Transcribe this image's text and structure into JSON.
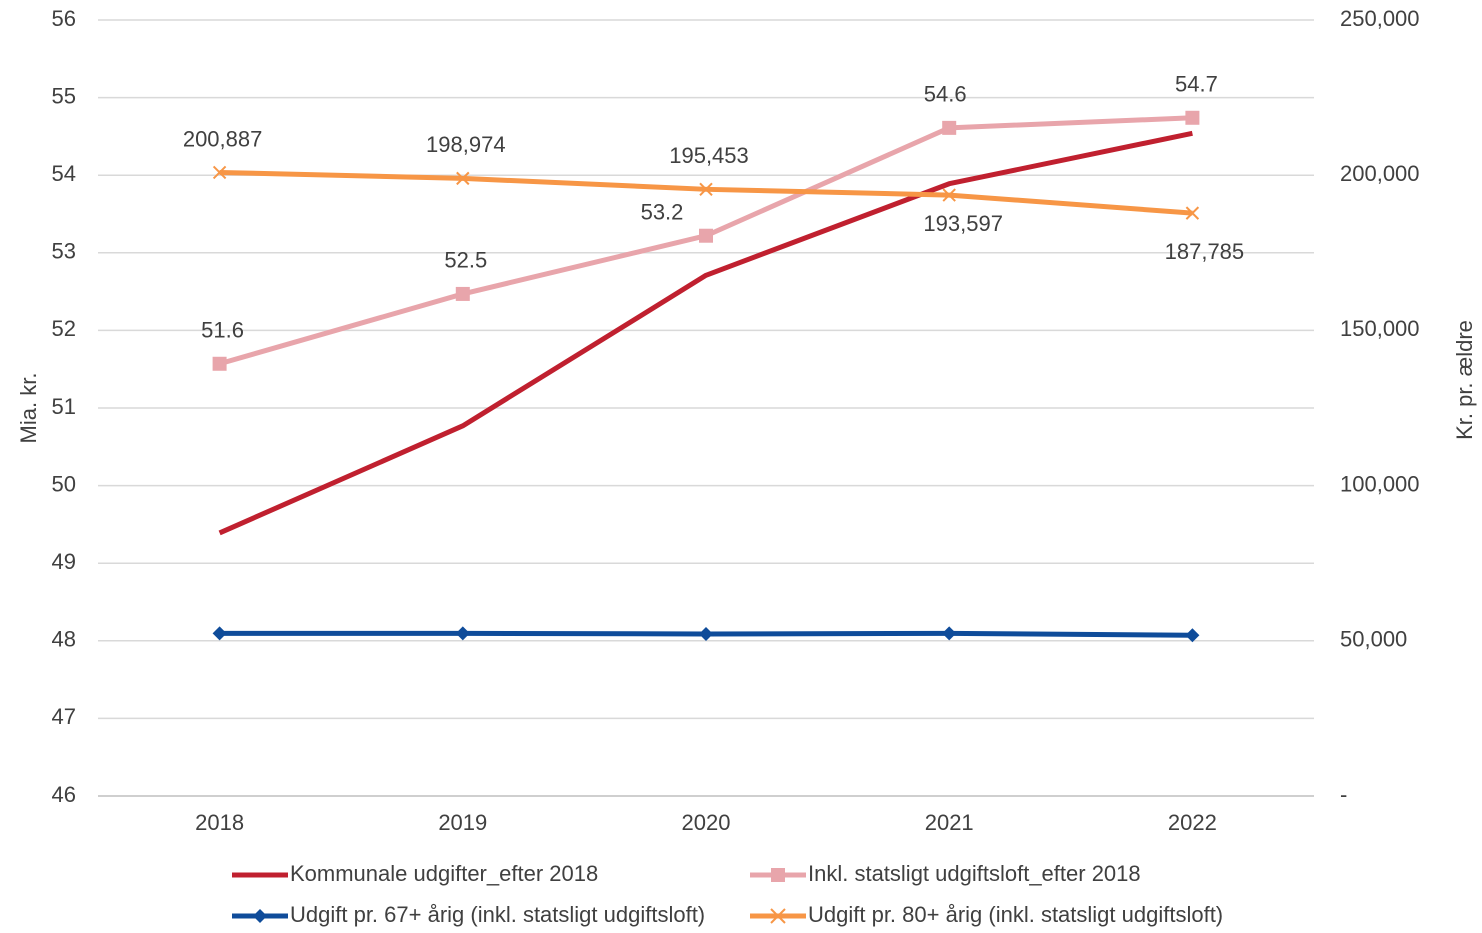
{
  "chart_data": {
    "type": "line",
    "categories": [
      "2018",
      "2019",
      "2020",
      "2021",
      "2022"
    ],
    "ylabel": "Mia. kr.",
    "y2label": "Kr. pr. ældre",
    "ylim": [
      46,
      56
    ],
    "yticks": [
      46,
      47,
      48,
      49,
      50,
      51,
      52,
      53,
      54,
      55,
      56
    ],
    "y2lim": [
      0,
      250000
    ],
    "y2ticks": [
      {
        "value": 0,
        "label": "-"
      },
      {
        "value": 50000,
        "label": "50,000"
      },
      {
        "value": 100000,
        "label": "100,000"
      },
      {
        "value": 150000,
        "label": "150,000"
      },
      {
        "value": 200000,
        "label": "200,000"
      },
      {
        "value": 250000,
        "label": "250,000"
      }
    ],
    "grid": true,
    "legend": "bottom",
    "series": [
      {
        "name": "Kommunale udgifter_efter 2018",
        "color": "#c0202f",
        "marker": "none",
        "values": [
          49.39,
          50.77,
          52.71,
          53.89,
          54.54
        ]
      },
      {
        "name": "Inkl. statsligt udgiftsloft_efter 2018",
        "color": "#e8a5ab",
        "marker": "square",
        "values": [
          51.57,
          52.47,
          53.22,
          54.61,
          54.74
        ],
        "value_labels": [
          "51.6",
          "52.5",
          "53.2",
          "54.6",
          "54.7"
        ]
      },
      {
        "name": "Udgift pr. 67+ årig (inkl. statsligt udgiftsloft)",
        "color": "#0f4c9a",
        "marker": "diamond",
        "axis": "y2",
        "values": [
          52400,
          52400,
          52200,
          52400,
          51800
        ]
      },
      {
        "name": "Udgift pr. 80+ årig (inkl. statsligt udgiftsloft)",
        "color": "#f79646",
        "marker": "x",
        "axis": "y2",
        "values": [
          200887,
          198974,
          195453,
          193597,
          187785
        ],
        "value_labels": [
          "200,887",
          "198,974",
          "195,453",
          "193,597",
          "187,785"
        ]
      }
    ]
  }
}
